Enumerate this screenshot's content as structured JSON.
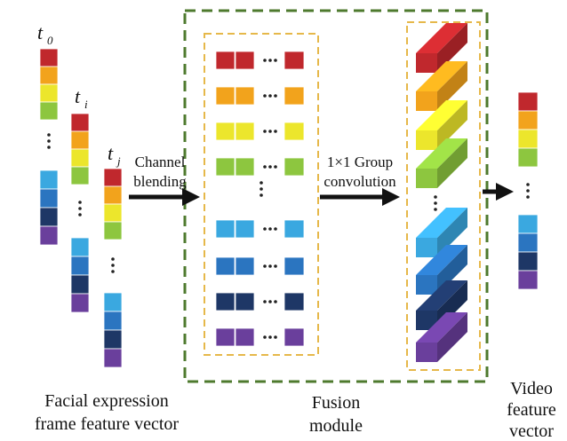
{
  "frames": [
    {
      "symbol": "t",
      "subscript": "0"
    },
    {
      "symbol": "t",
      "subscript": "i"
    },
    {
      "symbol": "t",
      "subscript": "j"
    }
  ],
  "arrows": [
    {
      "label": [
        "Channel",
        "blending"
      ]
    },
    {
      "label": [
        "1×1 Group",
        "convolution"
      ]
    }
  ],
  "captions": {
    "input": [
      "Facial expression",
      "frame feature vector"
    ],
    "fusion": [
      "Fusion",
      "module"
    ],
    "output": [
      "Video",
      "feature",
      "vector"
    ]
  }
}
